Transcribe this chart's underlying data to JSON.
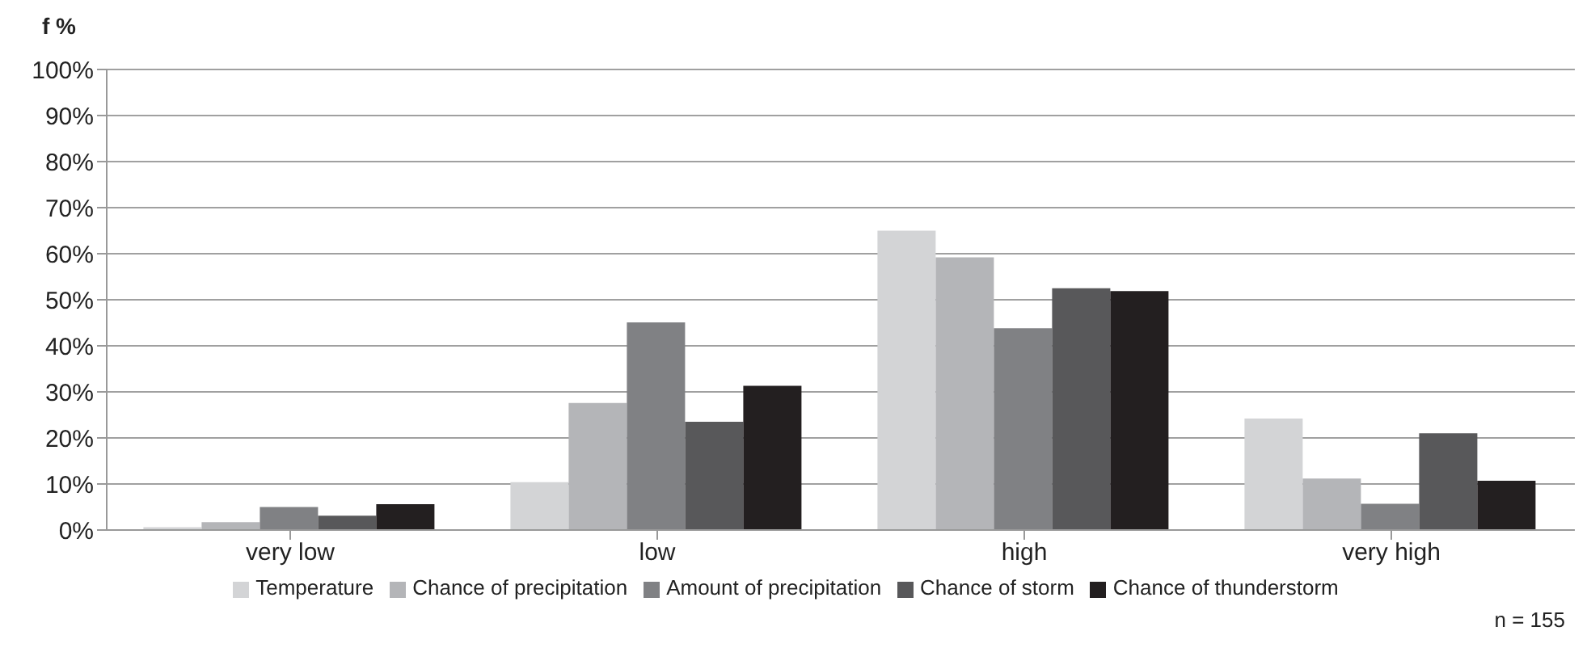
{
  "chart_data": {
    "type": "bar",
    "ylabel": "f %",
    "categories": [
      "very low",
      "low",
      "high",
      "very high"
    ],
    "series": [
      {
        "name": "Temperature",
        "color": "#d3d4d6",
        "values": [
          0.6,
          10.4,
          65.0,
          24.2
        ]
      },
      {
        "name": "Chance of precipitation",
        "color": "#b4b5b8",
        "values": [
          1.7,
          27.6,
          59.2,
          11.2
        ]
      },
      {
        "name": "Amount of precipitation",
        "color": "#808184",
        "values": [
          5.0,
          45.1,
          43.8,
          5.7
        ]
      },
      {
        "name": "Chance of storm",
        "color": "#58585a",
        "values": [
          3.1,
          23.5,
          52.5,
          21.0
        ]
      },
      {
        "name": "Chance of thunderstorm",
        "color": "#231f20",
        "values": [
          5.6,
          31.3,
          51.9,
          10.7
        ]
      }
    ],
    "ylim": [
      0,
      100
    ],
    "yticks": [
      {
        "value": 0,
        "label": "0%"
      },
      {
        "value": 10,
        "label": "10%"
      },
      {
        "value": 20,
        "label": "20%"
      },
      {
        "value": 30,
        "label": "30%"
      },
      {
        "value": 40,
        "label": "40%"
      },
      {
        "value": 50,
        "label": "50%"
      },
      {
        "value": 60,
        "label": "60%"
      },
      {
        "value": 70,
        "label": "70%"
      },
      {
        "value": 80,
        "label": "80%"
      },
      {
        "value": 90,
        "label": "90%"
      },
      {
        "value": 100,
        "label": "100%"
      }
    ],
    "grid": "y",
    "legend": "bottom",
    "annotations": [
      "n = 155"
    ]
  }
}
